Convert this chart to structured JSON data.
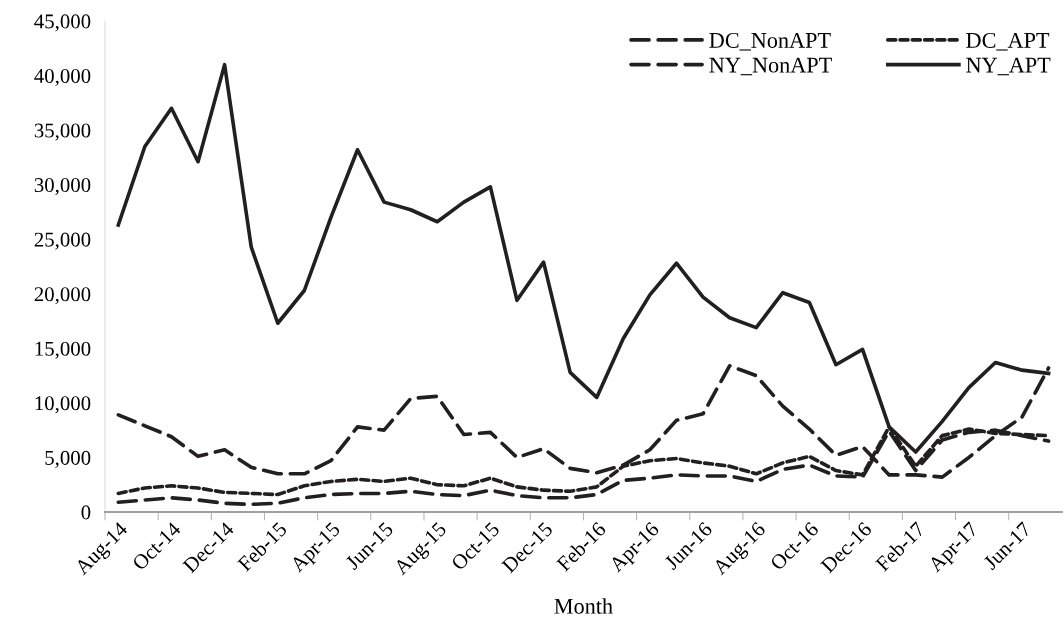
{
  "chart_data": {
    "type": "line",
    "xlabel": "Month",
    "categories": [
      "Aug-14",
      null,
      "Oct-14",
      null,
      "Dec-14",
      null,
      "Feb-15",
      null,
      "Apr-15",
      null,
      "Jun-15",
      null,
      "Aug-15",
      null,
      "Oct-15",
      null,
      "Dec-15",
      null,
      "Feb-16",
      null,
      "Apr-16",
      null,
      "Jun-16",
      null,
      "Aug-16",
      null,
      "Oct-16",
      null,
      "Dec-16",
      null,
      "Feb-17",
      null,
      "Apr-17",
      null,
      "Jun-17",
      null
    ],
    "series": [
      {
        "name": "DC_NonAPT",
        "color": "#231f20",
        "line_style": "dashed",
        "values": [
          900,
          1100,
          1300,
          1100,
          800,
          700,
          800,
          1300,
          1600,
          1700,
          1700,
          1900,
          1600,
          1500,
          2000,
          1500,
          1300,
          1300,
          1600,
          2900,
          3100,
          3400,
          3300,
          3300,
          2800,
          3900,
          4300,
          3300,
          3200,
          7400,
          3800,
          6600,
          7300,
          7500,
          7000,
          6500
        ]
      },
      {
        "name": "DC_APT",
        "color": "#231f20",
        "line_style": "dotted",
        "values": [
          1700,
          2200,
          2400,
          2200,
          1800,
          1700,
          1600,
          2400,
          2800,
          3000,
          2800,
          3100,
          2500,
          2400,
          3100,
          2300,
          2000,
          1900,
          2300,
          4200,
          4700,
          4900,
          4500,
          4200,
          3500,
          4500,
          5100,
          3800,
          3400,
          7800,
          4200,
          7000,
          7600,
          7200,
          7100,
          7000
        ]
      },
      {
        "name": "NY_NonAPT",
        "color": "#231f20",
        "line_style": "dashed",
        "values": [
          8900,
          7900,
          6900,
          5100,
          5700,
          4100,
          3500,
          3500,
          4700,
          7800,
          7500,
          10400,
          10600,
          7100,
          7300,
          5000,
          5800,
          4000,
          3600,
          4300,
          5700,
          8400,
          9000,
          13400,
          12500,
          9700,
          7600,
          5200,
          6000,
          3400,
          3400,
          3200,
          5000,
          7000,
          8700,
          13200
        ]
      },
      {
        "name": "NY_APT",
        "color": "#231f20",
        "line_style": "solid",
        "values": [
          26300,
          33500,
          37000,
          32100,
          41000,
          24300,
          17300,
          20300,
          27000,
          33200,
          28400,
          27700,
          26600,
          28400,
          29800,
          19400,
          22900,
          12800,
          10500,
          15900,
          19900,
          22800,
          19700,
          17800,
          16900,
          20100,
          19200,
          13500,
          14900,
          7800,
          5500,
          8300,
          11400,
          13700,
          13000,
          12700
        ]
      }
    ],
    "ylim": [
      0,
      45000
    ],
    "yticks": [
      {
        "value": 0,
        "label": "0"
      },
      {
        "value": 5000,
        "label": "5,000"
      },
      {
        "value": 10000,
        "label": "10,000"
      },
      {
        "value": 15000,
        "label": "15,000"
      },
      {
        "value": 20000,
        "label": "20,000"
      },
      {
        "value": 25000,
        "label": "25,000"
      },
      {
        "value": 30000,
        "label": "30,000"
      },
      {
        "value": 35000,
        "label": "35,000"
      },
      {
        "value": 40000,
        "label": "40,000"
      },
      {
        "value": 45000,
        "label": "45,000"
      }
    ],
    "grid": false,
    "legend": "top right",
    "marker": "none"
  }
}
